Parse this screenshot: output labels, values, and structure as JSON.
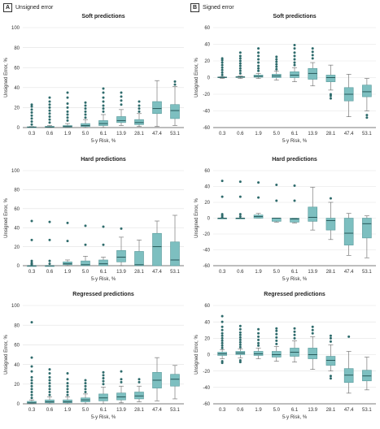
{
  "figure": {
    "panel_a": {
      "letter": "A",
      "title": "Unsigned error"
    },
    "panel_b": {
      "letter": "B",
      "title": "Signed error"
    }
  },
  "colors": {
    "box_fill": "#7dbfc0",
    "box_stroke": "#5a9a9b",
    "outlier": "#2e6b6c",
    "grid": "#e2e2e2",
    "axis": "#555555"
  },
  "chart_data": [
    {
      "type": "box",
      "panel": "A",
      "title": "Soft predictions",
      "xlabel": "5-y Risk, %",
      "ylabel": "Unsigned Error, %",
      "ylim": [
        0,
        100
      ],
      "yticks": [
        0,
        20,
        40,
        60,
        80,
        100
      ],
      "categories": [
        "0.3",
        "0.6",
        "1.9",
        "5.0",
        "6.1",
        "13.9",
        "28.1",
        "47.4",
        "53.1"
      ],
      "boxes": [
        {
          "min": 0,
          "q1": 0,
          "median": 0.3,
          "q3": 0.8,
          "max": 1,
          "outliers": [
            3,
            6,
            9,
            12,
            15,
            18,
            21,
            23
          ]
        },
        {
          "min": 0,
          "q1": 0.2,
          "median": 0.6,
          "q3": 1.2,
          "max": 2,
          "outliers": [
            5,
            8,
            11,
            14,
            17,
            20,
            23,
            26,
            30
          ]
        },
        {
          "min": 0,
          "q1": 0.5,
          "median": 1,
          "q3": 2,
          "max": 4,
          "outliers": [
            7,
            10,
            13,
            16,
            20,
            24,
            30,
            35
          ]
        },
        {
          "min": 0,
          "q1": 1,
          "median": 2,
          "q3": 4,
          "max": 8,
          "outliers": [
            10,
            13,
            16,
            19,
            22,
            25
          ]
        },
        {
          "min": 0,
          "q1": 2,
          "median": 4,
          "q3": 7,
          "max": 13,
          "outliers": [
            16,
            19,
            22,
            26,
            30,
            35,
            39
          ]
        },
        {
          "min": 2,
          "q1": 5,
          "median": 7,
          "q3": 11,
          "max": 18,
          "outliers": [
            23,
            27,
            31,
            35
          ]
        },
        {
          "min": 1,
          "q1": 3,
          "median": 5,
          "q3": 8,
          "max": 14,
          "outliers": [
            16,
            19,
            22,
            26
          ]
        },
        {
          "min": 1,
          "q1": 14,
          "median": 19,
          "q3": 26,
          "max": 47,
          "outliers": []
        },
        {
          "min": 2,
          "q1": 9,
          "median": 17,
          "q3": 23,
          "max": 41,
          "outliers": [
            43,
            46
          ]
        }
      ]
    },
    {
      "type": "box",
      "panel": "B",
      "title": "Soft predictions",
      "xlabel": "5-y Risk, %",
      "ylabel": "Unsigned Error, %",
      "ylim": [
        -60,
        60
      ],
      "yticks": [
        -60,
        -40,
        -20,
        0,
        20,
        40,
        60
      ],
      "categories": [
        "0.3",
        "0.6",
        "1.9",
        "5.0",
        "6.1",
        "13.9",
        "28.1",
        "47.4",
        "53.1"
      ],
      "boxes": [
        {
          "min": -1,
          "q1": 0,
          "median": 0.3,
          "q3": 0.8,
          "max": 1,
          "outliers": [
            3,
            6,
            9,
            12,
            15,
            18,
            21,
            23
          ]
        },
        {
          "min": -1,
          "q1": 0.2,
          "median": 0.6,
          "q3": 1.2,
          "max": 2,
          "outliers": [
            5,
            8,
            11,
            14,
            17,
            20,
            23,
            26,
            30
          ]
        },
        {
          "min": -1,
          "q1": 0.5,
          "median": 1.5,
          "q3": 3,
          "max": 5,
          "outliers": [
            8,
            11,
            14,
            18,
            22,
            26,
            30,
            35
          ]
        },
        {
          "min": -3,
          "q1": 0,
          "median": 2,
          "q3": 4,
          "max": 8,
          "outliers": [
            10,
            13,
            16,
            19,
            22,
            25
          ]
        },
        {
          "min": -5,
          "q1": 0,
          "median": 3,
          "q3": 7,
          "max": 12,
          "outliers": [
            15,
            18,
            22,
            26,
            30,
            35,
            39
          ]
        },
        {
          "min": -10,
          "q1": -2,
          "median": 5,
          "q3": 11,
          "max": 18,
          "outliers": [
            23,
            27,
            31,
            35
          ]
        },
        {
          "min": -15,
          "q1": -5,
          "median": 0,
          "q3": 3,
          "max": 15,
          "outliers": [
            -20,
            -22,
            -25
          ]
        },
        {
          "min": -47,
          "q1": -28,
          "median": -20,
          "q3": -12,
          "max": 4,
          "outliers": []
        },
        {
          "min": -40,
          "q1": -23,
          "median": -17,
          "q3": -9,
          "max": -1,
          "outliers": [
            -45,
            -48
          ]
        }
      ]
    },
    {
      "type": "box",
      "panel": "A",
      "title": "Hard predictions",
      "xlabel": "5-y Risk, %",
      "ylabel": "Unsigned Error, %",
      "ylim": [
        0,
        100
      ],
      "yticks": [
        0,
        20,
        40,
        60,
        80,
        100
      ],
      "categories": [
        "0.3",
        "0.6",
        "1.9",
        "5.0",
        "6.1",
        "13.9",
        "28.1",
        "47.4",
        "53.1"
      ],
      "boxes": [
        {
          "min": 0,
          "q1": 0,
          "median": 0,
          "q3": 0,
          "max": 0,
          "outliers": [
            1,
            2,
            3,
            5,
            27,
            47
          ]
        },
        {
          "min": 0,
          "q1": 0,
          "median": 0,
          "q3": 0,
          "max": 0,
          "outliers": [
            2,
            5,
            27,
            46
          ]
        },
        {
          "min": 0,
          "q1": 1,
          "median": 2,
          "q3": 4,
          "max": 6,
          "outliers": [
            26,
            45
          ]
        },
        {
          "min": 0,
          "q1": 0,
          "median": 1,
          "q3": 5,
          "max": 10,
          "outliers": [
            22,
            42
          ]
        },
        {
          "min": 0,
          "q1": 0,
          "median": 2,
          "q3": 6,
          "max": 9,
          "outliers": [
            22,
            41
          ]
        },
        {
          "min": 0,
          "q1": 4,
          "median": 9,
          "q3": 16,
          "max": 30,
          "outliers": [
            39
          ]
        },
        {
          "min": 0,
          "q1": 0,
          "median": 1,
          "q3": 15,
          "max": 27,
          "outliers": []
        },
        {
          "min": 0,
          "q1": 0,
          "median": 20,
          "q3": 34,
          "max": 47,
          "outliers": []
        },
        {
          "min": 0,
          "q1": 0,
          "median": 6,
          "q3": 25,
          "max": 53,
          "outliers": []
        }
      ]
    },
    {
      "type": "box",
      "panel": "B",
      "title": "Hard predictions",
      "xlabel": "5-y Risk, %",
      "ylabel": "Unsigned Error, %",
      "ylim": [
        -60,
        60
      ],
      "yticks": [
        -60,
        -40,
        -20,
        0,
        20,
        40,
        60
      ],
      "categories": [
        "0.3",
        "0.6",
        "1.9",
        "5.0",
        "6.1",
        "13.9",
        "28.1",
        "47.4",
        "53.1"
      ],
      "boxes": [
        {
          "min": 0,
          "q1": 0,
          "median": 0,
          "q3": 0,
          "max": 0,
          "outliers": [
            1,
            3,
            5,
            27,
            47
          ]
        },
        {
          "min": 0,
          "q1": 0,
          "median": 0,
          "q3": 0,
          "max": 0,
          "outliers": [
            2,
            5,
            27,
            46
          ]
        },
        {
          "min": 0,
          "q1": 0,
          "median": 2,
          "q3": 4,
          "max": 6,
          "outliers": [
            26,
            45
          ]
        },
        {
          "min": -5,
          "q1": -4,
          "median": 0,
          "q3": 0,
          "max": 0,
          "outliers": [
            22,
            42
          ]
        },
        {
          "min": -6,
          "q1": -5,
          "median": -1,
          "q3": 0,
          "max": 0,
          "outliers": [
            22,
            41
          ]
        },
        {
          "min": -15,
          "q1": -4,
          "median": 1,
          "q3": 14,
          "max": 39,
          "outliers": []
        },
        {
          "min": -27,
          "q1": -15,
          "median": -3,
          "q3": 0,
          "max": 20,
          "outliers": [
            25
          ]
        },
        {
          "min": -47,
          "q1": -34,
          "median": -19,
          "q3": 0,
          "max": 6,
          "outliers": []
        },
        {
          "min": -50,
          "q1": -25,
          "median": -7,
          "q3": 0,
          "max": 3,
          "outliers": []
        }
      ]
    },
    {
      "type": "box",
      "panel": "A",
      "title": "Regressed predictions",
      "xlabel": "5-y Risk, %",
      "ylabel": "Unsigned Error, %",
      "ylim": [
        0,
        100
      ],
      "yticks": [
        0,
        20,
        40,
        60,
        80,
        100
      ],
      "categories": [
        "0.3",
        "0.6",
        "1.9",
        "5.0",
        "6.1",
        "13.9",
        "28.1",
        "47.4",
        "53.1"
      ],
      "boxes": [
        {
          "min": 0,
          "q1": 0.5,
          "median": 1,
          "q3": 2.5,
          "max": 4,
          "outliers": [
            6,
            9,
            12,
            15,
            18,
            21,
            24,
            27,
            33,
            38,
            47,
            83
          ]
        },
        {
          "min": 0,
          "q1": 1,
          "median": 2,
          "q3": 4,
          "max": 7,
          "outliers": [
            9,
            12,
            15,
            18,
            21,
            24,
            27,
            31,
            35
          ]
        },
        {
          "min": 0,
          "q1": 1,
          "median": 2,
          "q3": 4,
          "max": 7,
          "outliers": [
            9,
            12,
            15,
            18,
            21,
            25,
            31
          ]
        },
        {
          "min": 0,
          "q1": 2,
          "median": 4,
          "q3": 6,
          "max": 10,
          "outliers": [
            12,
            15,
            18,
            21,
            24
          ]
        },
        {
          "min": 0,
          "q1": 3,
          "median": 6,
          "q3": 10,
          "max": 17,
          "outliers": [
            20,
            23,
            26,
            29,
            32
          ]
        },
        {
          "min": 1,
          "q1": 4,
          "median": 7,
          "q3": 11,
          "max": 18,
          "outliers": [
            22,
            25,
            33
          ]
        },
        {
          "min": 2,
          "q1": 5,
          "median": 8,
          "q3": 12,
          "max": 18,
          "outliers": [
            22,
            25
          ]
        },
        {
          "min": 3,
          "q1": 16,
          "median": 24,
          "q3": 32,
          "max": 47,
          "outliers": []
        },
        {
          "min": 5,
          "q1": 18,
          "median": 25,
          "q3": 30,
          "max": 39,
          "outliers": []
        }
      ]
    },
    {
      "type": "box",
      "panel": "B",
      "title": "Regressed predictions",
      "xlabel": "5-y Risk, %",
      "ylabel": "Unsigned Error, %",
      "ylim": [
        -60,
        60
      ],
      "yticks": [
        -60,
        -40,
        -20,
        0,
        20,
        40,
        60
      ],
      "categories": [
        "0.3",
        "0.6",
        "1.9",
        "5.0",
        "6.1",
        "13.9",
        "28.1",
        "47.4",
        "53.1"
      ],
      "boxes": [
        {
          "min": -5,
          "q1": -1,
          "median": 1,
          "q3": 3,
          "max": 6,
          "outliers": [
            -8,
            -10,
            8,
            11,
            14,
            17,
            20,
            23,
            26,
            30,
            34,
            40,
            47
          ]
        },
        {
          "min": -4,
          "q1": 0,
          "median": 2,
          "q3": 4,
          "max": 7,
          "outliers": [
            -7,
            -9,
            9,
            12,
            15,
            18,
            21,
            24,
            27,
            31,
            35
          ]
        },
        {
          "min": -5,
          "q1": -1,
          "median": 1,
          "q3": 4,
          "max": 8,
          "outliers": [
            11,
            14,
            18,
            22,
            26,
            31
          ]
        },
        {
          "min": -8,
          "q1": -3,
          "median": 0,
          "q3": 4,
          "max": 10,
          "outliers": [
            13,
            17,
            21,
            25,
            29,
            32
          ]
        },
        {
          "min": -9,
          "q1": -2,
          "median": 3,
          "q3": 8,
          "max": 17,
          "outliers": [
            20,
            24,
            28,
            32
          ]
        },
        {
          "min": -18,
          "q1": -5,
          "median": 0,
          "q3": 8,
          "max": 22,
          "outliers": [
            26,
            30,
            34
          ]
        },
        {
          "min": -20,
          "q1": -13,
          "median": -7,
          "q3": -2,
          "max": 12,
          "outliers": [
            -26,
            -29,
            16,
            20,
            23
          ]
        },
        {
          "min": -47,
          "q1": -34,
          "median": -25,
          "q3": -17,
          "max": 4,
          "outliers": [
            22
          ]
        },
        {
          "min": -43,
          "q1": -32,
          "median": -26,
          "q3": -19,
          "max": -3,
          "outliers": []
        }
      ]
    }
  ]
}
